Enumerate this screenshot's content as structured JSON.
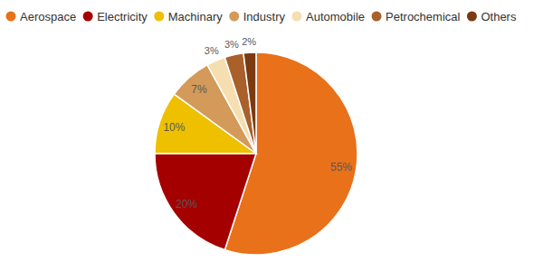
{
  "chart_data": {
    "type": "pie",
    "categories": [
      "Aerospace",
      "Electricity",
      "Machinary",
      "Industry",
      "Automobile",
      "Petrochemical",
      "Others"
    ],
    "values": [
      55,
      20,
      10,
      7,
      3,
      3,
      2
    ],
    "value_labels": [
      "55%",
      "20%",
      "10%",
      "7%",
      "3%",
      "3%",
      "2%"
    ],
    "colors": [
      "#e8711a",
      "#a50000",
      "#eec000",
      "#d39a5a",
      "#f5deb0",
      "#a9602a",
      "#7b3a10"
    ],
    "data_labels": true,
    "legend": "top"
  }
}
